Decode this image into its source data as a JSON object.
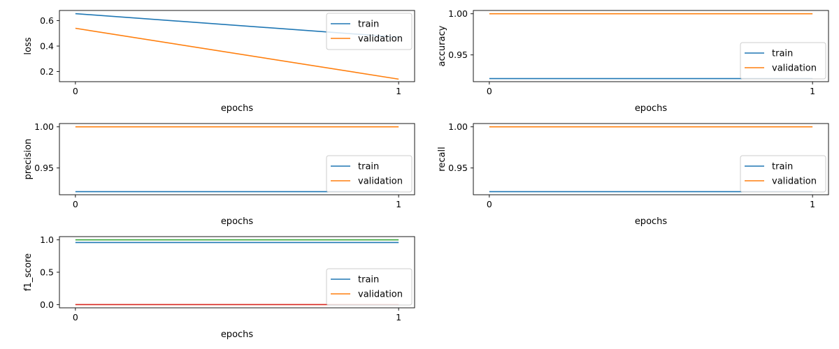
{
  "colors": {
    "train": "#1f77b4",
    "validation": "#ff7f0e",
    "third": "#2ca02c",
    "fourth": "#d62728"
  },
  "chart_data": [
    {
      "type": "line",
      "xlabel": "epochs",
      "ylabel": "loss",
      "x": [
        0,
        1
      ],
      "xticks": [
        "0",
        "1"
      ],
      "ylim": [
        0.12,
        0.68
      ],
      "yticks": [
        0.2,
        0.4,
        0.6
      ],
      "ytick_labels": [
        "0.2",
        "0.4",
        "0.6"
      ],
      "legend_position": "top-right",
      "legend": [
        "train",
        "validation"
      ],
      "series": [
        {
          "name": "train",
          "color": "#1f77b4",
          "values": [
            0.655,
            0.47
          ]
        },
        {
          "name": "validation",
          "color": "#ff7f0e",
          "values": [
            0.54,
            0.14
          ]
        }
      ]
    },
    {
      "type": "line",
      "xlabel": "epochs",
      "ylabel": "accuracy",
      "x": [
        0,
        1
      ],
      "xticks": [
        "0",
        "1"
      ],
      "ylim": [
        0.9175,
        1.004
      ],
      "yticks": [
        0.95,
        1.0
      ],
      "ytick_labels": [
        "0.95",
        "1.00"
      ],
      "legend_position": "bottom-right",
      "legend": [
        "train",
        "validation"
      ],
      "series": [
        {
          "name": "train",
          "color": "#1f77b4",
          "values": [
            0.9213,
            0.9213
          ]
        },
        {
          "name": "validation",
          "color": "#ff7f0e",
          "values": [
            1.0,
            1.0
          ]
        }
      ]
    },
    {
      "type": "line",
      "xlabel": "epochs",
      "ylabel": "precision",
      "x": [
        0,
        1
      ],
      "xticks": [
        "0",
        "1"
      ],
      "ylim": [
        0.9175,
        1.004
      ],
      "yticks": [
        0.95,
        1.0
      ],
      "ytick_labels": [
        "0.95",
        "1.00"
      ],
      "legend_position": "bottom-right",
      "legend": [
        "train",
        "validation"
      ],
      "series": [
        {
          "name": "train",
          "color": "#1f77b4",
          "values": [
            0.9213,
            0.9213
          ]
        },
        {
          "name": "validation",
          "color": "#ff7f0e",
          "values": [
            1.0,
            1.0
          ]
        }
      ]
    },
    {
      "type": "line",
      "xlabel": "epochs",
      "ylabel": "recall",
      "x": [
        0,
        1
      ],
      "xticks": [
        "0",
        "1"
      ],
      "ylim": [
        0.9175,
        1.004
      ],
      "yticks": [
        0.95,
        1.0
      ],
      "ytick_labels": [
        "0.95",
        "1.00"
      ],
      "legend_position": "bottom-right",
      "legend": [
        "train",
        "validation"
      ],
      "series": [
        {
          "name": "train",
          "color": "#1f77b4",
          "values": [
            0.9213,
            0.9213
          ]
        },
        {
          "name": "validation",
          "color": "#ff7f0e",
          "values": [
            1.0,
            1.0
          ]
        }
      ]
    },
    {
      "type": "line",
      "xlabel": "epochs",
      "ylabel": "f1_score",
      "x": [
        0,
        1
      ],
      "xticks": [
        "0",
        "1"
      ],
      "ylim": [
        -0.05,
        1.05
      ],
      "yticks": [
        0.0,
        0.5,
        1.0
      ],
      "ytick_labels": [
        "0.0",
        "0.5",
        "1.0"
      ],
      "legend_position": "bottom-right",
      "legend": [
        "train",
        "validation"
      ],
      "series": [
        {
          "color": "#1f77b4",
          "values": [
            0.959,
            0.959
          ]
        },
        {
          "color": "#ff7f0e",
          "values": [
            0.0,
            0.0
          ]
        },
        {
          "color": "#2ca02c",
          "values": [
            1.0,
            1.0
          ]
        },
        {
          "color": "#d62728",
          "values": [
            0.0,
            0.0
          ]
        }
      ]
    }
  ]
}
